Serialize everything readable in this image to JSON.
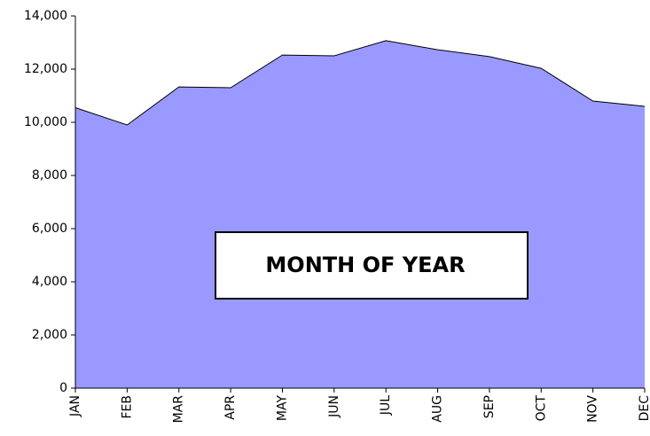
{
  "chart_data": {
    "type": "area",
    "categories": [
      "JAN",
      "FEB",
      "MAR",
      "APR",
      "MAY",
      "JUN",
      "JUL",
      "AUG",
      "SEP",
      "OCT",
      "NOV",
      "DEC"
    ],
    "values": [
      10550,
      9900,
      11330,
      11300,
      12530,
      12500,
      13070,
      12730,
      12470,
      12030,
      10800,
      10600
    ],
    "color": "#9999ff",
    "ylim": [
      0,
      14000
    ],
    "yticks": [
      0,
      {
        "value": 2000,
        "label": "2,000"
      },
      {
        "value": 4000,
        "label": "4,000"
      },
      {
        "value": 6000,
        "label": "6,000"
      },
      {
        "value": 8000,
        "label": "8,000"
      },
      {
        "value": 10000,
        "label": "10,000"
      },
      {
        "value": 12000,
        "label": "12,000"
      },
      {
        "value": 14000,
        "label": "14,000"
      }
    ],
    "annotations": [
      "MONTH OF YEAR"
    ]
  }
}
